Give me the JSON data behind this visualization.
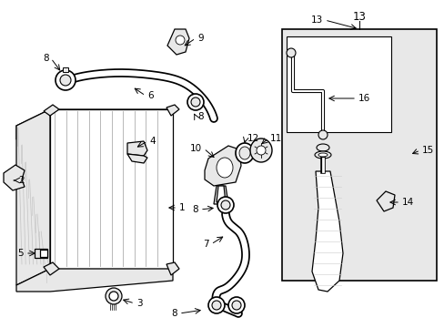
{
  "bg_color": "#ffffff",
  "fig_width": 4.89,
  "fig_height": 3.6,
  "dpi": 100,
  "lc": "#000000",
  "fc": "#ffffff",
  "gray": "#cccccc",
  "lightgray": "#e8e8e8",
  "font_size": 7.5
}
